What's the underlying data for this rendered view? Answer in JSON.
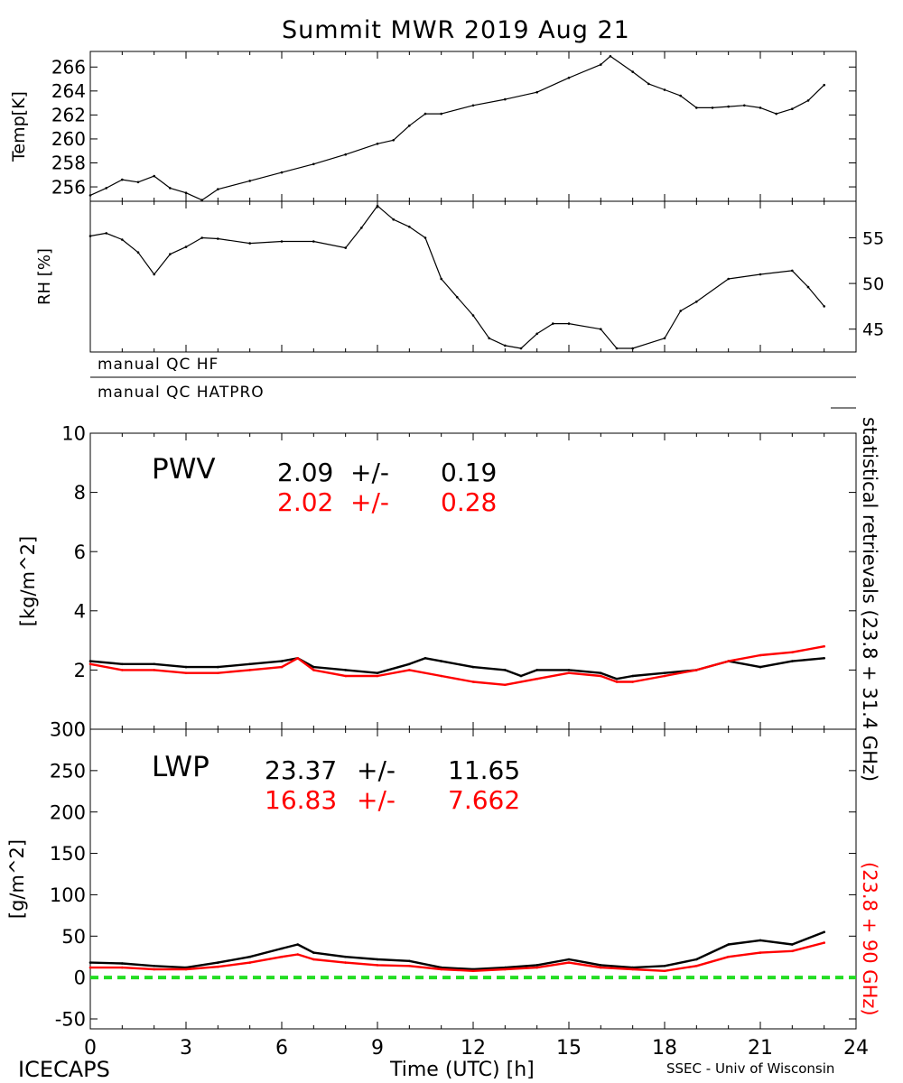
{
  "title": "Summit MWR 2019 Aug 21",
  "footer": {
    "left": "ICECAPS",
    "center": "Time (UTC) [h]",
    "right": "SSEC - Univ of Wisconsin"
  },
  "colors": {
    "black": "#000000",
    "red": "#ff0000",
    "zero_line": "#22dd22"
  },
  "qc_labels": [
    "manual QC HF",
    "manual QC HATPRO"
  ],
  "side_label_black": "statistical retrievals (23.8 + 31.4 GHz)",
  "side_label_red": "(23.8 + 90 GHz)",
  "chart_data": [
    {
      "id": "temp",
      "type": "line",
      "ylabel": "Temp[K]",
      "ylim": [
        254.8,
        267.3
      ],
      "yticks": [
        "256",
        "258",
        "260",
        "262",
        "264",
        "266"
      ],
      "xlim": [
        0,
        24
      ],
      "series": [
        {
          "color": "#000000",
          "x": [
            0,
            0.5,
            1,
            1.5,
            2,
            2.5,
            3,
            3.5,
            4,
            5,
            6,
            7,
            8,
            9,
            9.5,
            10,
            10.5,
            11,
            12,
            13,
            14,
            15,
            16,
            16.3,
            17,
            17.5,
            18,
            18.5,
            19,
            19.5,
            20,
            20.5,
            21,
            21.5,
            22,
            22.5,
            23
          ],
          "y": [
            255.3,
            255.9,
            256.6,
            256.4,
            256.9,
            255.9,
            255.5,
            254.9,
            255.8,
            256.5,
            257.2,
            257.9,
            258.7,
            259.6,
            259.9,
            261.1,
            262.1,
            262.1,
            262.8,
            263.3,
            263.9,
            265.1,
            266.2,
            266.9,
            265.6,
            264.6,
            264.1,
            263.6,
            262.6,
            262.6,
            262.7,
            262.8,
            262.6,
            262.1,
            262.5,
            263.2,
            264.5
          ]
        }
      ]
    },
    {
      "id": "rh",
      "type": "line",
      "ylabel": "RH [%]",
      "ylim": [
        42.5,
        59
      ],
      "yticks": [
        "45",
        "50",
        "55"
      ],
      "xlim": [
        0,
        24
      ],
      "series": [
        {
          "color": "#000000",
          "x": [
            0,
            0.5,
            1,
            1.5,
            2,
            2.5,
            3,
            3.5,
            4,
            5,
            6,
            7,
            8,
            8.5,
            9,
            9.5,
            10,
            10.5,
            11,
            11.5,
            12,
            12.5,
            13,
            13.5,
            14,
            14.5,
            15,
            16,
            16.5,
            17,
            18,
            18.5,
            19,
            20,
            21,
            22,
            22.5,
            23
          ],
          "y": [
            55.2,
            55.5,
            54.8,
            53.4,
            51.0,
            53.2,
            54.0,
            55.0,
            54.9,
            54.4,
            54.6,
            54.6,
            53.9,
            56.1,
            58.5,
            57.0,
            56.2,
            55.0,
            50.5,
            48.5,
            46.5,
            44.0,
            43.2,
            42.9,
            44.5,
            45.6,
            45.6,
            45.0,
            42.9,
            42.9,
            44.0,
            47.0,
            48.0,
            50.5,
            51.0,
            51.4,
            49.6,
            47.5
          ]
        }
      ]
    },
    {
      "id": "pwv",
      "type": "line",
      "ylabel": "[kg/m^2]",
      "label": "PWV",
      "ylim": [
        0,
        10
      ],
      "yticks": [
        "0",
        "2",
        "4",
        "6",
        "8",
        "10"
      ],
      "xlim": [
        0,
        24
      ],
      "stats": [
        {
          "color": "#000000",
          "mean": "2.09",
          "pm": "+/-",
          "sd": "0.19"
        },
        {
          "color": "#ff0000",
          "mean": "2.02",
          "pm": "+/-",
          "sd": "0.28"
        }
      ],
      "series": [
        {
          "color": "#000000",
          "x": [
            0,
            1,
            2,
            3,
            4,
            5,
            6,
            6.5,
            7,
            8,
            9,
            10,
            10.5,
            11,
            12,
            13,
            13.5,
            14,
            15,
            16,
            16.5,
            17,
            18,
            19,
            20,
            21,
            22,
            23
          ],
          "y": [
            2.3,
            2.2,
            2.2,
            2.1,
            2.1,
            2.2,
            2.3,
            2.4,
            2.1,
            2.0,
            1.9,
            2.2,
            2.4,
            2.3,
            2.1,
            2.0,
            1.8,
            2.0,
            2.0,
            1.9,
            1.7,
            1.8,
            1.9,
            2.0,
            2.3,
            2.1,
            2.3,
            2.4
          ]
        },
        {
          "color": "#ff0000",
          "x": [
            0,
            1,
            2,
            3,
            4,
            5,
            6,
            6.5,
            7,
            8,
            9,
            10,
            11,
            12,
            13,
            14,
            15,
            16,
            16.5,
            17,
            18,
            19,
            20,
            21,
            22,
            23
          ],
          "y": [
            2.2,
            2.0,
            2.0,
            1.9,
            1.9,
            2.0,
            2.1,
            2.4,
            2.0,
            1.8,
            1.8,
            2.0,
            1.8,
            1.6,
            1.5,
            1.7,
            1.9,
            1.8,
            1.6,
            1.6,
            1.8,
            2.0,
            2.3,
            2.5,
            2.6,
            2.8
          ]
        }
      ]
    },
    {
      "id": "lwp",
      "type": "line",
      "ylabel": "[g/m^2]",
      "label": "LWP",
      "ylim": [
        -62,
        300
      ],
      "yticks": [
        "-50",
        "0",
        "50",
        "100",
        "150",
        "200",
        "250",
        "300"
      ],
      "xlim": [
        0,
        24
      ],
      "zero_line": 0,
      "stats": [
        {
          "color": "#000000",
          "mean": "23.37",
          "pm": "+/-",
          "sd": "11.65"
        },
        {
          "color": "#ff0000",
          "mean": "16.83",
          "pm": "+/-",
          "sd": "7.662"
        }
      ],
      "series": [
        {
          "color": "#000000",
          "x": [
            0,
            1,
            2,
            3,
            4,
            5,
            6,
            6.5,
            7,
            8,
            9,
            10,
            11,
            12,
            13,
            14,
            15,
            16,
            17,
            18,
            19,
            20,
            21,
            22,
            23
          ],
          "y": [
            18,
            17,
            14,
            12,
            18,
            25,
            35,
            40,
            30,
            25,
            22,
            20,
            12,
            10,
            12,
            15,
            22,
            15,
            12,
            14,
            22,
            40,
            45,
            40,
            55
          ]
        },
        {
          "color": "#ff0000",
          "x": [
            0,
            1,
            2,
            3,
            4,
            5,
            6,
            6.5,
            7,
            8,
            9,
            10,
            11,
            12,
            13,
            14,
            15,
            16,
            17,
            18,
            19,
            20,
            21,
            22,
            23
          ],
          "y": [
            12,
            12,
            10,
            10,
            13,
            18,
            25,
            28,
            22,
            18,
            15,
            14,
            10,
            8,
            10,
            12,
            18,
            12,
            10,
            8,
            14,
            25,
            30,
            32,
            42
          ]
        }
      ]
    }
  ],
  "x_axis": {
    "ticks": [
      "0",
      "3",
      "6",
      "9",
      "12",
      "15",
      "18",
      "21",
      "24"
    ],
    "values": [
      0,
      3,
      6,
      9,
      12,
      15,
      18,
      21,
      24
    ]
  }
}
